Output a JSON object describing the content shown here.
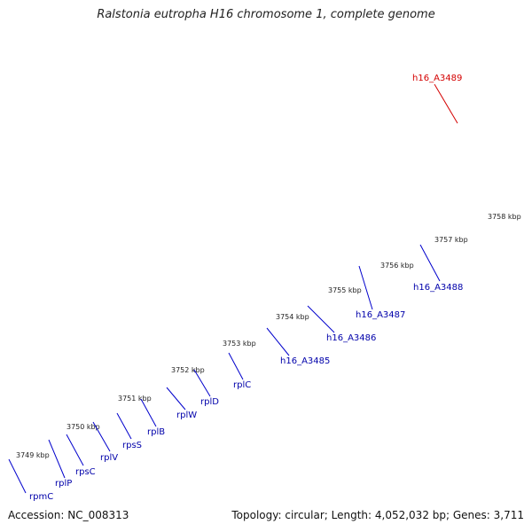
{
  "title": "Ralstonia eutropha H16 chromosome 1, complete genome",
  "footer": {
    "accession": "Accession: NC_008313",
    "summary": "Topology: circular; Length: 4,052,032 bp; Genes: 3,711"
  },
  "colors": {
    "backbone": "#8a8a8a",
    "tick": "#2e8b2e",
    "label_line": "#0000cc",
    "label_text": "#0000aa",
    "highlight_label": "#d40000",
    "forward_gene": "#1a1aee",
    "reverse_gene": "#f09696",
    "hypothetical_gene": "#000080",
    "gray_gene": "#c8c8c8",
    "orange_gene": "#ff9a00",
    "red_gene": "#ff1010"
  },
  "scale_labels": [
    "3749 kbp",
    "3750 kbp",
    "3751 kbp",
    "3752 kbp",
    "3753 kbp",
    "3754 kbp",
    "3755 kbp",
    "3756 kbp",
    "3757 kbp",
    "3758 kbp"
  ],
  "gene_labels": [
    "rpmC",
    "rplP",
    "rpsC",
    "rplV",
    "rpsS",
    "rplB",
    "rplW",
    "rplD",
    "rplC",
    "h16_A3485",
    "h16_A3486",
    "h16_A3487",
    "h16_A3488",
    "h16_A3489"
  ]
}
